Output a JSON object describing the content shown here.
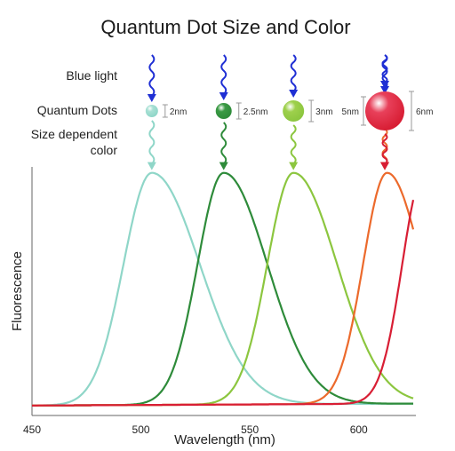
{
  "chart_data": {
    "type": "line",
    "title": "Quantum Dot Size and Color",
    "xlabel": "Wavelength (nm)",
    "ylabel": "Fluorescence",
    "xlim": [
      450,
      625
    ],
    "ylim": [
      0,
      1
    ],
    "x_ticks": [
      450,
      500,
      550,
      600
    ],
    "row_labels": {
      "blue_light": "Blue light",
      "quantum_dots": "Quantum Dots",
      "size_dependent_1": "Size dependent",
      "size_dependent_2": "color"
    },
    "series": [
      {
        "size_label": "2nm",
        "peak": 505,
        "width_left": 13,
        "width_right": 22,
        "color": "#8fd6c8",
        "dot_color": "#a8e0d4",
        "dot_radius": 7
      },
      {
        "size_label": "2.5nm",
        "peak": 538,
        "width_left": 12,
        "width_right": 20,
        "color": "#2e8b3a",
        "dot_color": "#3a9a44",
        "dot_radius": 9
      },
      {
        "size_label": "3nm",
        "peak": 570,
        "width_left": 12,
        "width_right": 20,
        "color": "#8cc63f",
        "dot_color": "#9ed04c",
        "dot_radius": 12
      },
      {
        "size_label": "5nm",
        "peak": 613,
        "width_left": 11,
        "width_right": 16,
        "color": "#ec6a2c",
        "dot_color": "#f27a55",
        "dot_radius": 16
      },
      {
        "size_label": "6nm",
        "peak": 630,
        "width_left": 10,
        "width_right": 16,
        "color": "#d81e34",
        "dot_color": "#e8405a",
        "dot_radius": 22
      }
    ]
  }
}
